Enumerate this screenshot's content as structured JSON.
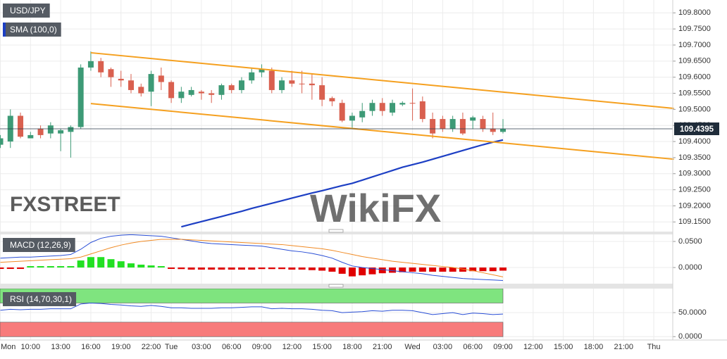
{
  "chart_data": [
    {
      "type": "candlestick",
      "title": "USD/JPY",
      "categories": [
        "Mon",
        null,
        null,
        "10:00",
        null,
        null,
        "13:00",
        null,
        null,
        "16:00",
        null,
        null,
        "19:00",
        null,
        null,
        "22:00",
        null,
        "Tue",
        null,
        null,
        "03:00",
        null,
        null,
        "06:00",
        null,
        null,
        "09:00",
        null,
        null,
        "12:00",
        null,
        null,
        "15:00",
        null,
        null,
        "18:00",
        null,
        null,
        "21:00",
        null,
        null,
        "Wed",
        null,
        null,
        "03:00",
        null,
        null,
        "06:00",
        null,
        null,
        "09:00",
        null,
        null,
        "12:00",
        null,
        null,
        "15:00",
        null,
        null,
        "18:00",
        null,
        null,
        "21:00",
        null,
        null,
        "Thu"
      ],
      "ylim": [
        109.12,
        109.84
      ],
      "yticks": [
        {
          "value": 109.8,
          "label": "109.8000"
        },
        {
          "value": 109.75,
          "label": "109.7500"
        },
        {
          "value": 109.7,
          "label": "109.7000"
        },
        {
          "value": 109.65,
          "label": "109.6500"
        },
        {
          "value": 109.6,
          "label": "109.6000"
        },
        {
          "value": 109.55,
          "label": "109.5500"
        },
        {
          "value": 109.5,
          "label": "109.5000"
        },
        {
          "value": 109.45,
          "label": "109.4500"
        },
        {
          "value": 109.4,
          "label": "109.4000"
        },
        {
          "value": 109.35,
          "label": "109.3500"
        },
        {
          "value": 109.3,
          "label": "109.3000"
        },
        {
          "value": 109.25,
          "label": "109.2500"
        },
        {
          "value": 109.2,
          "label": "109.2000"
        },
        {
          "value": 109.15,
          "label": "109.1500"
        }
      ],
      "grid": true,
      "last_price": 109.4395,
      "watermarks": [
        "FXSTREET",
        "WikiFX"
      ],
      "series": [
        {
          "type": "candlestick",
          "up_color": "#3d9a76",
          "down_color": "#d9604f",
          "open": [
            109.39,
            109.4,
            109.48,
            109.41,
            109.44,
            109.425,
            109.425,
            109.43,
            109.445,
            109.63,
            109.65,
            109.625,
            109.595,
            109.59,
            109.57,
            109.555,
            109.605,
            109.585,
            109.535,
            109.545,
            109.555,
            109.55,
            109.545,
            109.575,
            109.56,
            109.59,
            109.615,
            109.62,
            109.56,
            109.59,
            109.58,
            109.58,
            109.575,
            109.535,
            109.52,
            109.465,
            109.475,
            109.495,
            109.52,
            109.49,
            109.515,
            109.52,
            109.525,
            109.47,
            109.47,
            109.44,
            109.47,
            109.465,
            109.47,
            109.44,
            109.43,
            null,
            null,
            null,
            null,
            null,
            null,
            null,
            null,
            null,
            null,
            null,
            null,
            null,
            null,
            null
          ],
          "high": [
            109.42,
            109.5,
            109.49,
            109.43,
            109.45,
            109.46,
            109.44,
            109.45,
            109.64,
            109.68,
            109.66,
            109.63,
            109.62,
            109.61,
            109.58,
            109.62,
            109.63,
            109.59,
            109.57,
            109.57,
            109.56,
            109.56,
            109.58,
            109.58,
            109.6,
            109.63,
            109.64,
            109.63,
            109.6,
            109.62,
            109.62,
            109.61,
            109.6,
            109.54,
            109.53,
            109.49,
            109.52,
            109.53,
            109.535,
            109.53,
            109.525,
            109.565,
            109.54,
            109.49,
            109.48,
            109.48,
            109.49,
            109.48,
            109.48,
            109.49,
            109.47,
            null,
            null,
            null,
            null,
            null,
            null,
            null,
            null,
            null,
            null,
            null,
            null,
            null,
            null,
            null
          ],
          "low": [
            109.38,
            109.38,
            109.41,
            109.41,
            109.41,
            109.41,
            109.37,
            109.35,
            109.44,
            109.62,
            109.6,
            109.57,
            109.57,
            109.55,
            109.54,
            109.51,
            109.56,
            109.52,
            109.52,
            109.54,
            109.53,
            109.52,
            109.53,
            109.55,
            109.55,
            109.58,
            109.6,
            109.55,
            109.55,
            109.57,
            109.55,
            109.53,
            109.51,
            109.51,
            109.46,
            109.44,
            109.46,
            109.48,
            109.48,
            109.48,
            109.51,
            109.465,
            109.46,
            109.41,
            109.43,
            109.43,
            109.42,
            109.44,
            109.43,
            109.42,
            109.425,
            null,
            null,
            null,
            null,
            null,
            null,
            null,
            null,
            null,
            null,
            null,
            null,
            null,
            null,
            null
          ],
          "close": [
            109.41,
            109.48,
            109.415,
            109.42,
            109.42,
            109.45,
            109.435,
            109.445,
            109.63,
            109.65,
            109.615,
            109.6,
            109.59,
            109.56,
            109.55,
            109.61,
            109.585,
            109.535,
            109.555,
            109.56,
            109.55,
            109.545,
            109.575,
            109.56,
            109.59,
            109.615,
            109.625,
            109.56,
            109.59,
            109.58,
            109.578,
            109.575,
            109.53,
            109.525,
            109.465,
            109.48,
            109.495,
            109.52,
            109.495,
            109.52,
            109.52,
            109.518,
            109.47,
            109.425,
            109.44,
            109.47,
            109.425,
            109.475,
            109.44,
            109.43,
            109.4395,
            null,
            null,
            null,
            null,
            null,
            null,
            null,
            null,
            null,
            null,
            null,
            null,
            null,
            null,
            null
          ]
        },
        {
          "type": "line",
          "name": "SMA (100,0)",
          "color": "#1d3fc4",
          "values": [
            null,
            null,
            null,
            null,
            null,
            null,
            null,
            null,
            null,
            null,
            null,
            null,
            null,
            null,
            null,
            null,
            null,
            null,
            109.135,
            109.143,
            109.151,
            109.159,
            109.167,
            109.175,
            109.183,
            109.192,
            109.2,
            109.208,
            109.216,
            109.224,
            109.232,
            109.24,
            109.247,
            109.255,
            109.263,
            109.27,
            109.28,
            109.29,
            109.3,
            109.31,
            109.32,
            109.328,
            109.336,
            109.345,
            109.354,
            109.363,
            109.372,
            109.381,
            109.39,
            109.398,
            109.405,
            null,
            null,
            null,
            null,
            null,
            null,
            null,
            null,
            null,
            null,
            null,
            null,
            null,
            null,
            null
          ]
        }
      ],
      "trendlines": [
        {
          "color": "#f5a01f",
          "x": [
            9,
            67
          ],
          "values": [
            109.676,
            109.503
          ]
        },
        {
          "color": "#f5a01f",
          "x": [
            9,
            67
          ],
          "values": [
            109.518,
            109.345
          ]
        }
      ]
    },
    {
      "type": "macd",
      "title": "MACD (12,26,9)",
      "ylim": [
        -0.031,
        0.0635
      ],
      "yticks": [
        {
          "value": 0.05,
          "label": "0.0500"
        },
        {
          "value": 0,
          "label": "0.0000"
        }
      ],
      "grid": true,
      "series": [
        {
          "type": "bar",
          "up_color": "#22e022",
          "down_color": "#e00000",
          "values": [
            -0.001,
            -0.001,
            -0.001,
            0.001,
            0.001,
            0.001,
            0.001,
            0.001,
            0.0135,
            0.02,
            0.02,
            0.016,
            0.012,
            0.008,
            0.0055,
            0.004,
            0.0027,
            -0.001,
            -0.003,
            -0.004,
            -0.004,
            -0.004,
            -0.004,
            -0.004,
            -0.004,
            -0.004,
            -0.003,
            -0.003,
            -0.003,
            -0.004,
            -0.004,
            -0.005,
            -0.006,
            -0.008,
            -0.012,
            -0.017,
            -0.015,
            -0.013,
            -0.011,
            -0.01,
            -0.009,
            -0.008,
            -0.008,
            -0.008,
            -0.008,
            -0.008,
            -0.008,
            -0.007,
            -0.007,
            -0.007,
            -0.006,
            null,
            null,
            null,
            null,
            null,
            null,
            null,
            null,
            null,
            null,
            null,
            null,
            null,
            null,
            null
          ]
        },
        {
          "type": "line",
          "color": "#2a4fd6",
          "values": [
            0.018,
            0.019,
            0.02,
            0.02,
            0.021,
            0.022,
            0.023,
            0.025,
            0.035,
            0.048,
            0.056,
            0.06,
            0.062,
            0.063,
            0.062,
            0.061,
            0.06,
            0.057,
            0.054,
            0.051,
            0.048,
            0.046,
            0.045,
            0.044,
            0.043,
            0.042,
            0.041,
            0.038,
            0.035,
            0.032,
            0.03,
            0.027,
            0.023,
            0.018,
            0.01,
            0.003,
            0,
            -0.002,
            -0.004,
            -0.006,
            -0.008,
            -0.01,
            -0.012,
            -0.015,
            -0.017,
            -0.019,
            -0.021,
            -0.022,
            -0.023,
            -0.024,
            -0.025,
            null,
            null,
            null,
            null,
            null,
            null,
            null,
            null,
            null,
            null,
            null,
            null,
            null,
            null,
            null
          ]
        },
        {
          "type": "line",
          "color": "#f08a24",
          "values": [
            0.01,
            0.011,
            0.012,
            0.013,
            0.014,
            0.015,
            0.016,
            0.017,
            0.02,
            0.026,
            0.032,
            0.038,
            0.043,
            0.047,
            0.05,
            0.052,
            0.054,
            0.054,
            0.054,
            0.053,
            0.052,
            0.051,
            0.05,
            0.049,
            0.048,
            0.047,
            0.046,
            0.045,
            0.044,
            0.042,
            0.04,
            0.038,
            0.036,
            0.033,
            0.029,
            0.025,
            0.021,
            0.018,
            0.015,
            0.012,
            0.01,
            0.008,
            0.006,
            0.004,
            0.002,
            0,
            -0.003,
            -0.006,
            -0.01,
            -0.014,
            -0.018,
            null,
            null,
            null,
            null,
            null,
            null,
            null,
            null,
            null,
            null,
            null,
            null,
            null,
            null,
            null
          ]
        }
      ]
    },
    {
      "type": "rsi",
      "title": "RSI (14,70,30,1)",
      "ylim": [
        -7,
        100
      ],
      "yticks": [
        {
          "value": 50,
          "label": "50.0000"
        },
        {
          "value": 0,
          "label": "0.0000"
        }
      ],
      "grid": true,
      "zones": [
        {
          "from": 70,
          "to": 100,
          "color": "#7fe47f"
        },
        {
          "from": 0,
          "to": 30,
          "color": "#f77b7b"
        }
      ],
      "series": [
        {
          "type": "line",
          "color": "#2a4fd6",
          "values": [
            55,
            57,
            56,
            57,
            57,
            58,
            58,
            58,
            68,
            70,
            69,
            67,
            66,
            64,
            63,
            65,
            63,
            60,
            60,
            59,
            59,
            59,
            60,
            60,
            61,
            62,
            62,
            58,
            59,
            58,
            58,
            57,
            55,
            54,
            50,
            51,
            52,
            54,
            53,
            55,
            55,
            54,
            50,
            46,
            48,
            50,
            46,
            49,
            48,
            46,
            47,
            null,
            null,
            null,
            null,
            null,
            null,
            null,
            null,
            null,
            null,
            null,
            null,
            null,
            null,
            null
          ]
        }
      ]
    }
  ]
}
